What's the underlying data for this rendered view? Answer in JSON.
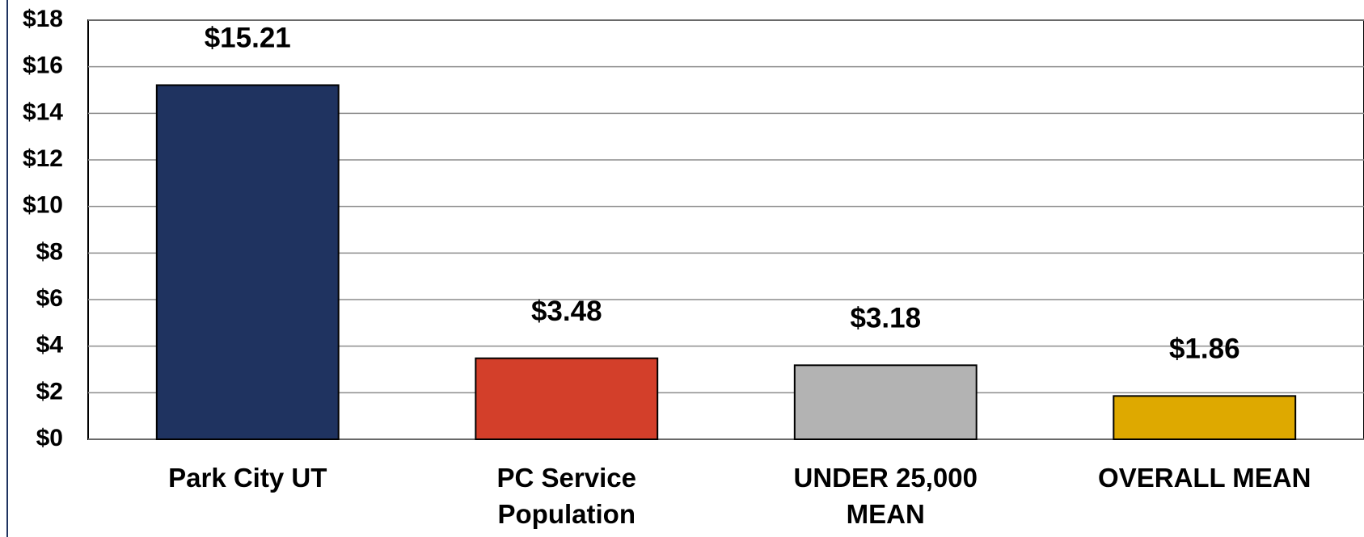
{
  "chart_data": {
    "type": "bar",
    "categories": [
      "Park City UT",
      "PC Service Population",
      "UNDER 25,000 MEAN",
      "OVERALL MEAN"
    ],
    "values": [
      15.21,
      3.48,
      3.18,
      1.86
    ],
    "value_labels": [
      "$15.21",
      "$3.48",
      "$3.18",
      "$1.86"
    ],
    "colors": [
      "#1f3360",
      "#d33f2a",
      "#b3b3b3",
      "#dea900"
    ],
    "ylim": [
      0,
      18
    ],
    "yticks": [
      {
        "value": 0,
        "label": "$0"
      },
      {
        "value": 2,
        "label": "$2"
      },
      {
        "value": 4,
        "label": "$4"
      },
      {
        "value": 6,
        "label": "$6"
      },
      {
        "value": 8,
        "label": "$8"
      },
      {
        "value": 10,
        "label": "$10"
      },
      {
        "value": 12,
        "label": "$12"
      },
      {
        "value": 14,
        "label": "$14"
      },
      {
        "value": 16,
        "label": "$16"
      },
      {
        "value": 18,
        "label": "$18"
      }
    ],
    "grid": true
  }
}
